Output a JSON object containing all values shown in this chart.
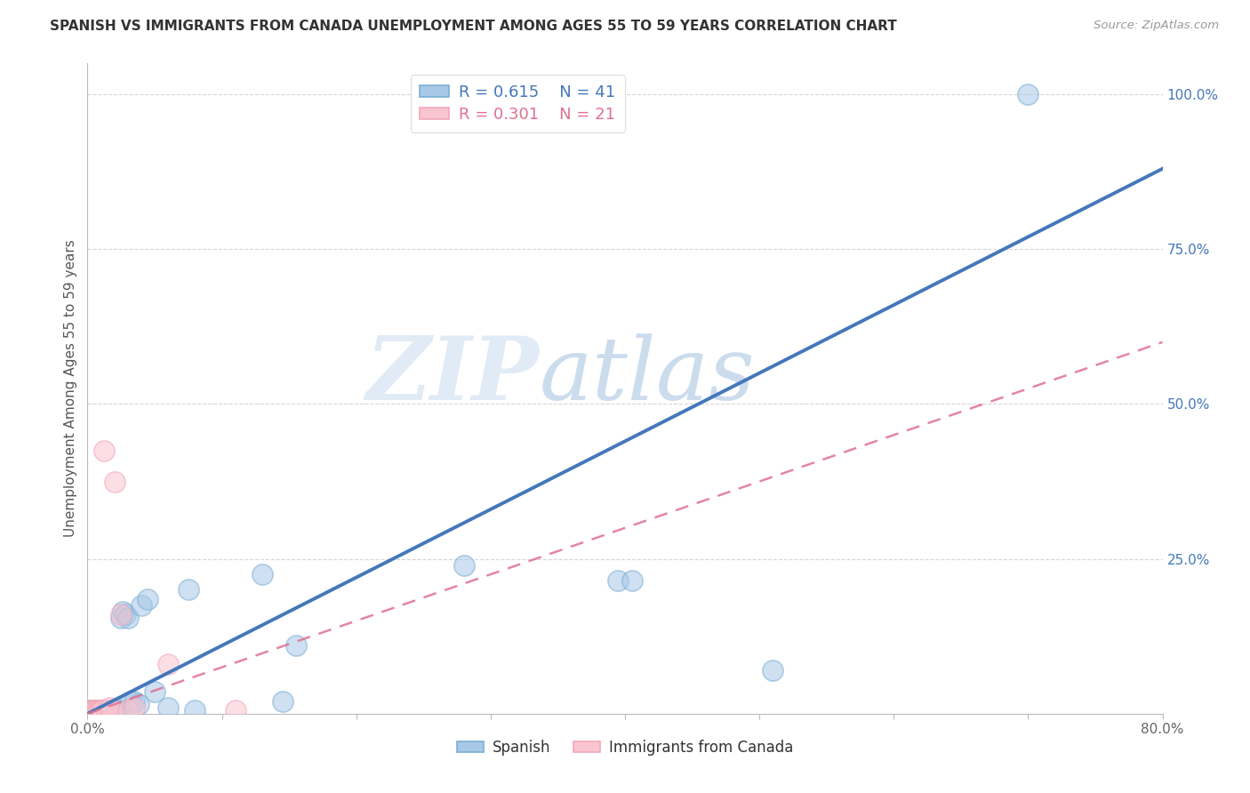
{
  "title": "SPANISH VS IMMIGRANTS FROM CANADA UNEMPLOYMENT AMONG AGES 55 TO 59 YEARS CORRELATION CHART",
  "source": "Source: ZipAtlas.com",
  "ylabel": "Unemployment Among Ages 55 to 59 years",
  "xlabel_label_spanish": "Spanish",
  "xlabel_label_canada": "Immigrants from Canada",
  "xmin": 0.0,
  "xmax": 0.8,
  "ymin": 0.0,
  "ymax": 1.05,
  "xticks": [
    0.0,
    0.1,
    0.2,
    0.3,
    0.4,
    0.5,
    0.6,
    0.7,
    0.8
  ],
  "xtick_labels_show": {
    "0": "0.0%",
    "8": "80.0%"
  },
  "yticks": [
    0.25,
    0.5,
    0.75,
    1.0
  ],
  "ytick_labels": [
    "25.0%",
    "50.0%",
    "75.0%",
    "100.0%"
  ],
  "legend_r_blue": "R = 0.615",
  "legend_n_blue": "N = 41",
  "legend_r_pink": "R = 0.301",
  "legend_n_pink": "N = 21",
  "blue_color": "#7BAFD4",
  "pink_color": "#F4A7B9",
  "blue_fill": "#A8C8E8",
  "pink_fill": "#F9C5D0",
  "blue_line_color": "#4477BB",
  "pink_line_color": "#E07090",
  "grid_color": "#CCCCCC",
  "watermark_zip": "ZIP",
  "watermark_atlas": "atlas",
  "blue_x": [
    0.001,
    0.002,
    0.003,
    0.004,
    0.005,
    0.006,
    0.007,
    0.008,
    0.009,
    0.01,
    0.011,
    0.012,
    0.013,
    0.015,
    0.016,
    0.018,
    0.02,
    0.022,
    0.024,
    0.025,
    0.026,
    0.028,
    0.03,
    0.032,
    0.035,
    0.038,
    0.04,
    0.045,
    0.05,
    0.06,
    0.075,
    0.08,
    0.13,
    0.145,
    0.155,
    0.28,
    0.29,
    0.395,
    0.405,
    0.51,
    0.7
  ],
  "blue_y": [
    0.005,
    0.005,
    0.005,
    0.005,
    0.005,
    0.005,
    0.003,
    0.005,
    0.005,
    0.005,
    0.005,
    0.005,
    0.005,
    0.005,
    0.005,
    0.005,
    0.005,
    0.005,
    0.005,
    0.155,
    0.165,
    0.16,
    0.155,
    0.02,
    0.02,
    0.015,
    0.175,
    0.185,
    0.035,
    0.01,
    0.2,
    0.005,
    0.225,
    0.02,
    0.11,
    0.24,
    1.0,
    0.215,
    0.215,
    0.07,
    1.0
  ],
  "pink_x": [
    0.001,
    0.002,
    0.003,
    0.004,
    0.005,
    0.006,
    0.007,
    0.008,
    0.009,
    0.01,
    0.011,
    0.012,
    0.014,
    0.016,
    0.018,
    0.02,
    0.025,
    0.03,
    0.035,
    0.06,
    0.11
  ],
  "pink_y": [
    0.005,
    0.005,
    0.005,
    0.005,
    0.005,
    0.005,
    0.005,
    0.005,
    0.005,
    0.005,
    0.005,
    0.425,
    0.005,
    0.01,
    0.005,
    0.375,
    0.16,
    0.005,
    0.01,
    0.08,
    0.005
  ],
  "blue_trend_x0": 0.0,
  "blue_trend_x1": 0.8,
  "blue_trend_y0": 0.0,
  "blue_trend_y1": 0.88,
  "pink_trend_x0": 0.0,
  "pink_trend_x1": 0.8,
  "pink_trend_y0": 0.0,
  "pink_trend_y1": 0.6
}
